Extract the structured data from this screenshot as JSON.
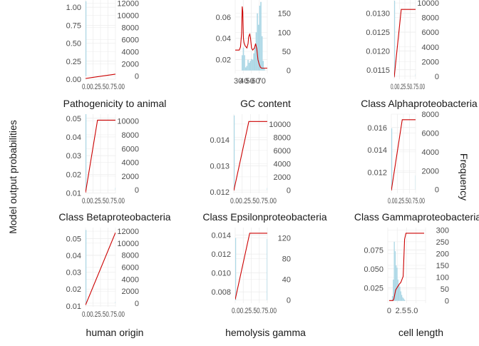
{
  "figure": {
    "left_axis_title": "Model output probabilities",
    "right_axis_title": "Frequency"
  },
  "colors": {
    "line": "#cc0000",
    "histogram": "#add8e6",
    "grid": "#ebebeb",
    "tick_text": "#4d4d4d",
    "title_text": "#1a1a1a"
  },
  "chart_data": [
    {
      "type": "line",
      "title": "Pathogenicity to animal",
      "ylim": [
        0.0,
        1.1
      ],
      "y_ticks": [
        {
          "v": 0.0,
          "label": "0.00"
        },
        {
          "v": 0.25,
          "label": "0.25"
        },
        {
          "v": 0.5,
          "label": "0.50"
        },
        {
          "v": 0.75,
          "label": "0.75"
        },
        {
          "v": 1.0,
          "label": "1.00"
        }
      ],
      "freq_lim": [
        -500,
        12500
      ],
      "freq_ticks": [
        0,
        2000,
        4000,
        6000,
        8000,
        10000,
        12000
      ],
      "xlim": [
        0,
        1
      ],
      "x_tick_text": "0.00.25.50.75.00",
      "line_x": [
        0,
        1
      ],
      "line_y": [
        0.01,
        0.07
      ],
      "hist": [
        {
          "x": 0.0,
          "w": 0.01,
          "count": 12300
        },
        {
          "x": 0.99,
          "w": 0.01,
          "count": 60
        }
      ]
    },
    {
      "type": "line",
      "title": "GC content",
      "ylim": [
        0.007,
        0.076
      ],
      "y_ticks": [
        {
          "v": 0.02,
          "label": "0.02"
        },
        {
          "v": 0.04,
          "label": "0.04"
        },
        {
          "v": 0.06,
          "label": "0.06"
        }
      ],
      "freq_lim": [
        -8,
        185
      ],
      "freq_ticks": [
        0,
        50,
        100,
        150
      ],
      "xlim": [
        25,
        80
      ],
      "x_ticks": [
        {
          "v": 30,
          "label": "30"
        },
        {
          "v": 40,
          "label": "40"
        },
        {
          "v": 50,
          "label": "50"
        },
        {
          "v": 60,
          "label": "60"
        },
        {
          "v": 70,
          "label": "70"
        }
      ],
      "line_x": [
        25,
        28,
        32,
        34,
        36,
        37,
        38,
        39,
        40,
        42,
        45,
        47,
        48,
        49,
        50,
        51,
        52,
        53,
        55,
        58,
        60,
        62,
        64,
        66,
        68,
        70,
        72,
        74,
        80
      ],
      "line_y": [
        0.029,
        0.029,
        0.029,
        0.032,
        0.045,
        0.07,
        0.065,
        0.04,
        0.036,
        0.033,
        0.031,
        0.035,
        0.041,
        0.043,
        0.044,
        0.041,
        0.036,
        0.031,
        0.029,
        0.031,
        0.035,
        0.03,
        0.02,
        0.016,
        0.013,
        0.012,
        0.012,
        0.012,
        0.012
      ],
      "hist": [
        {
          "x": 36,
          "w": 2,
          "count": 40
        },
        {
          "x": 38,
          "w": 2,
          "count": 60
        },
        {
          "x": 40,
          "w": 2,
          "count": 40
        },
        {
          "x": 42,
          "w": 2,
          "count": 8
        },
        {
          "x": 44,
          "w": 2,
          "count": 12
        },
        {
          "x": 46,
          "w": 2,
          "count": 28
        },
        {
          "x": 48,
          "w": 2,
          "count": 20
        },
        {
          "x": 50,
          "w": 2,
          "count": 25
        },
        {
          "x": 52,
          "w": 2,
          "count": 30
        },
        {
          "x": 54,
          "w": 2,
          "count": 28
        },
        {
          "x": 56,
          "w": 2,
          "count": 45
        },
        {
          "x": 58,
          "w": 2,
          "count": 60
        },
        {
          "x": 60,
          "w": 2,
          "count": 100
        },
        {
          "x": 62,
          "w": 2,
          "count": 150
        },
        {
          "x": 64,
          "w": 2,
          "count": 120
        },
        {
          "x": 66,
          "w": 2,
          "count": 170
        },
        {
          "x": 68,
          "w": 2,
          "count": 180
        },
        {
          "x": 70,
          "w": 2,
          "count": 90
        },
        {
          "x": 72,
          "w": 2,
          "count": 25
        },
        {
          "x": 74,
          "w": 2,
          "count": 5
        }
      ]
    },
    {
      "type": "line",
      "title": "Class Alphaproteobacteria",
      "ylim": [
        0.01125,
        0.01335
      ],
      "y_ticks": [
        {
          "v": 0.0115,
          "label": "0.0115"
        },
        {
          "v": 0.012,
          "label": "0.0120"
        },
        {
          "v": 0.0125,
          "label": "0.0125"
        },
        {
          "v": 0.013,
          "label": "0.0130"
        }
      ],
      "freq_lim": [
        -400,
        10400
      ],
      "freq_ticks": [
        0,
        2000,
        4000,
        6000,
        8000,
        10000
      ],
      "xlim": [
        0,
        1
      ],
      "x_tick_text": "0.00.25.50.75.00",
      "line_x": [
        0,
        0.33,
        1
      ],
      "line_y": [
        0.0113,
        0.0131,
        0.0131
      ],
      "hist": [
        {
          "x": 0.0,
          "w": 0.01,
          "count": 10300
        },
        {
          "x": 0.99,
          "w": 0.01,
          "count": 300
        }
      ]
    },
    {
      "type": "line",
      "title": "Class Betaproteobacteria",
      "ylim": [
        0.0098,
        0.0522
      ],
      "y_ticks": [
        {
          "v": 0.01,
          "label": "0.01"
        },
        {
          "v": 0.02,
          "label": "0.02"
        },
        {
          "v": 0.03,
          "label": "0.03"
        },
        {
          "v": 0.04,
          "label": "0.04"
        },
        {
          "v": 0.05,
          "label": "0.05"
        }
      ],
      "freq_lim": [
        -500,
        11000
      ],
      "freq_ticks": [
        0,
        2000,
        4000,
        6000,
        8000,
        10000
      ],
      "xlim": [
        0,
        1
      ],
      "x_tick_text": "0.00.25.50.75.00",
      "line_x": [
        0,
        0.4,
        1
      ],
      "line_y": [
        0.0102,
        0.049,
        0.049
      ],
      "hist": [
        {
          "x": 0.0,
          "w": 0.01,
          "count": 11000
        },
        {
          "x": 0.99,
          "w": 0.01,
          "count": 300
        }
      ]
    },
    {
      "type": "line",
      "title": "Class Epsilonproteobacteria",
      "ylim": [
        0.01195,
        0.01498
      ],
      "y_ticks": [
        {
          "v": 0.012,
          "label": "0.012"
        },
        {
          "v": 0.013,
          "label": "0.013"
        },
        {
          "v": 0.014,
          "label": "0.014"
        }
      ],
      "freq_lim": [
        -500,
        11500
      ],
      "freq_ticks": [
        0,
        2000,
        4000,
        6000,
        8000,
        10000
      ],
      "xlim": [
        0,
        1
      ],
      "x_tick_text": "0.00.25.50.75.00",
      "line_x": [
        0,
        0.45,
        1
      ],
      "line_y": [
        0.01205,
        0.0147,
        0.0147
      ],
      "hist": [
        {
          "x": 0.0,
          "w": 0.01,
          "count": 11300
        },
        {
          "x": 0.99,
          "w": 0.01,
          "count": 300
        }
      ]
    },
    {
      "type": "line",
      "title": "Class Gammaproteobacteria",
      "ylim": [
        0.0101,
        0.0172
      ],
      "y_ticks": [
        {
          "v": 0.012,
          "label": "0.012"
        },
        {
          "v": 0.014,
          "label": "0.014"
        },
        {
          "v": 0.016,
          "label": "0.016"
        }
      ],
      "freq_lim": [
        -400,
        8000
      ],
      "freq_ticks": [
        0,
        2000,
        4000,
        6000,
        8000
      ],
      "xlim": [
        0,
        1
      ],
      "x_tick_text": "0.00.25.50.75.00",
      "line_x": [
        0,
        0.45,
        1
      ],
      "line_y": [
        0.01035,
        0.0167,
        0.0167
      ],
      "hist": [
        {
          "x": 0.0,
          "w": 0.01,
          "count": 6500
        },
        {
          "x": 0.99,
          "w": 0.01,
          "count": 1500
        }
      ]
    },
    {
      "type": "line",
      "title": "human origin",
      "ylim": [
        0.0095,
        0.0565
      ],
      "y_ticks": [
        {
          "v": 0.01,
          "label": "0.01"
        },
        {
          "v": 0.02,
          "label": "0.02"
        },
        {
          "v": 0.03,
          "label": "0.03"
        },
        {
          "v": 0.04,
          "label": "0.04"
        },
        {
          "v": 0.05,
          "label": "0.05"
        }
      ],
      "freq_lim": [
        -600,
        12600
      ],
      "freq_ticks": [
        0,
        2000,
        4000,
        6000,
        8000,
        10000,
        12000
      ],
      "xlim": [
        0,
        1
      ],
      "x_tick_text": "0.00.25.50.75.00",
      "line_x": [
        0,
        1
      ],
      "line_y": [
        0.0105,
        0.0535
      ],
      "hist": [
        {
          "x": 0.0,
          "w": 0.01,
          "count": 12200
        },
        {
          "x": 0.99,
          "w": 0.01,
          "count": 200
        }
      ]
    },
    {
      "type": "line",
      "title": "hemolysis gamma",
      "ylim": [
        0.0068,
        0.0148
      ],
      "y_ticks": [
        {
          "v": 0.008,
          "label": "0.008"
        },
        {
          "v": 0.01,
          "label": "0.010"
        },
        {
          "v": 0.012,
          "label": "0.012"
        },
        {
          "v": 0.014,
          "label": "0.014"
        }
      ],
      "freq_lim": [
        -6,
        140
      ],
      "freq_ticks": [
        0,
        40,
        80,
        120
      ],
      "xlim": [
        0,
        1
      ],
      "x_tick_text": "0.00.25.50.75.00",
      "line_x": [
        0,
        0.45,
        1
      ],
      "line_y": [
        0.0072,
        0.0142,
        0.0142
      ],
      "hist": [
        {
          "x": 0.0,
          "w": 0.012,
          "count": 120
        },
        {
          "x": 0.985,
          "w": 0.012,
          "count": 118
        }
      ]
    },
    {
      "type": "line",
      "title": "cell length",
      "ylim": [
        0.0045,
        0.1045
      ],
      "y_ticks": [
        {
          "v": 0.025,
          "label": "0.025"
        },
        {
          "v": 0.05,
          "label": "0.050"
        },
        {
          "v": 0.075,
          "label": "0.075"
        }
      ],
      "freq_lim": [
        -10,
        310
      ],
      "freq_ticks": [
        0,
        50,
        100,
        150,
        200,
        250,
        300
      ],
      "xlim": [
        -0.3,
        7.8
      ],
      "x_ticks": [
        {
          "v": 0,
          "label": "0"
        },
        {
          "v": 2.5,
          "label": "2.5"
        },
        {
          "v": 5.0,
          "label": "5.0"
        }
      ],
      "line_x": [
        0,
        0.8,
        1.0,
        1.2,
        1.4,
        1.8,
        2.2,
        2.5,
        3.0,
        3.3,
        3.6,
        4.0,
        7.5
      ],
      "line_y": [
        0.008,
        0.008,
        0.01,
        0.016,
        0.022,
        0.026,
        0.03,
        0.032,
        0.04,
        0.089,
        0.097,
        0.097,
        0.097
      ],
      "hist": [
        {
          "x": 0.6,
          "w": 0.2,
          "count": 20
        },
        {
          "x": 0.8,
          "w": 0.2,
          "count": 90
        },
        {
          "x": 1.0,
          "w": 0.2,
          "count": 250
        },
        {
          "x": 1.2,
          "w": 0.2,
          "count": 210
        },
        {
          "x": 1.4,
          "w": 0.2,
          "count": 150
        },
        {
          "x": 1.6,
          "w": 0.2,
          "count": 140
        },
        {
          "x": 1.8,
          "w": 0.2,
          "count": 90
        },
        {
          "x": 2.0,
          "w": 0.2,
          "count": 70
        },
        {
          "x": 2.2,
          "w": 0.2,
          "count": 60
        },
        {
          "x": 2.4,
          "w": 0.2,
          "count": 40
        },
        {
          "x": 2.6,
          "w": 0.2,
          "count": 25
        },
        {
          "x": 2.8,
          "w": 0.2,
          "count": 15
        },
        {
          "x": 3.0,
          "w": 0.2,
          "count": 10
        },
        {
          "x": 3.2,
          "w": 0.2,
          "count": 5
        }
      ]
    }
  ]
}
